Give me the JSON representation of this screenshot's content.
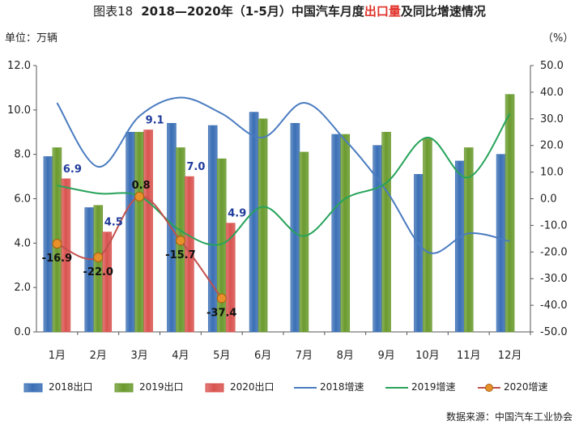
{
  "header": {
    "figure_label": "图表18",
    "title_part1": "2018—2020年（1-5月）中国汽车月度",
    "title_highlight": "出口量",
    "title_part2": "及同比增速情况"
  },
  "unit_left": "单位：万辆",
  "unit_right": "（%）",
  "source": "数据来源：中国汽车工业协会",
  "colors": {
    "export_2018": "#3a6fb5",
    "export_2019": "#6a9a2e",
    "export_2020": "#d9534f",
    "growth_2018": "#4a7cc0",
    "growth_2019": "#27a35a",
    "growth_2020": "#c0504d",
    "growth_2020_marker": "#e8912a"
  },
  "chart_data": {
    "type": "bar",
    "categories": [
      "1月",
      "2月",
      "3月",
      "4月",
      "5月",
      "6月",
      "7月",
      "8月",
      "9月",
      "10月",
      "11月",
      "12月"
    ],
    "y_left": {
      "min": 0,
      "max": 12,
      "step": 2,
      "ticks": [
        "0.0",
        "2.0",
        "4.0",
        "6.0",
        "8.0",
        "10.0",
        "12.0"
      ]
    },
    "y_right": {
      "min": -50,
      "max": 50,
      "step": 10,
      "ticks": [
        "-50.0",
        "-40.0",
        "-30.0",
        "-20.0",
        "-10.0",
        "0.0",
        "10.0",
        "20.0",
        "30.0",
        "40.0",
        "50.0"
      ]
    },
    "bar_series": [
      {
        "name": "2018出口",
        "values": [
          7.9,
          5.6,
          9.0,
          9.4,
          9.3,
          9.9,
          9.4,
          8.9,
          8.4,
          7.1,
          7.7,
          8.0
        ]
      },
      {
        "name": "2019出口",
        "values": [
          8.3,
          5.7,
          9.0,
          8.3,
          7.8,
          9.6,
          8.1,
          8.9,
          9.0,
          8.7,
          8.3,
          10.7
        ]
      },
      {
        "name": "2020出口",
        "values": [
          6.9,
          4.5,
          9.1,
          7.0,
          4.9
        ],
        "labels": [
          "6.9",
          "4.5",
          "9.1",
          "7.0",
          "4.9"
        ]
      }
    ],
    "line_series": [
      {
        "name": "2018增速",
        "values": [
          36,
          12,
          31,
          38,
          32,
          23,
          36,
          22,
          3,
          -20,
          -13,
          -16
        ]
      },
      {
        "name": "2019增速",
        "values": [
          5,
          2,
          1,
          -12,
          -17,
          -3,
          -14,
          0,
          6,
          23,
          8,
          32
        ]
      },
      {
        "name": "2020增速",
        "values": [
          -16.9,
          -22.0,
          0.8,
          -15.7,
          -37.4
        ],
        "labels": [
          "-16.9",
          "-22.0",
          "0.8",
          "-15.7",
          "-37.4"
        ]
      }
    ],
    "legend": [
      "2018出口",
      "2019出口",
      "2020出口",
      "2018增速",
      "2019增速",
      "2020增速"
    ]
  }
}
